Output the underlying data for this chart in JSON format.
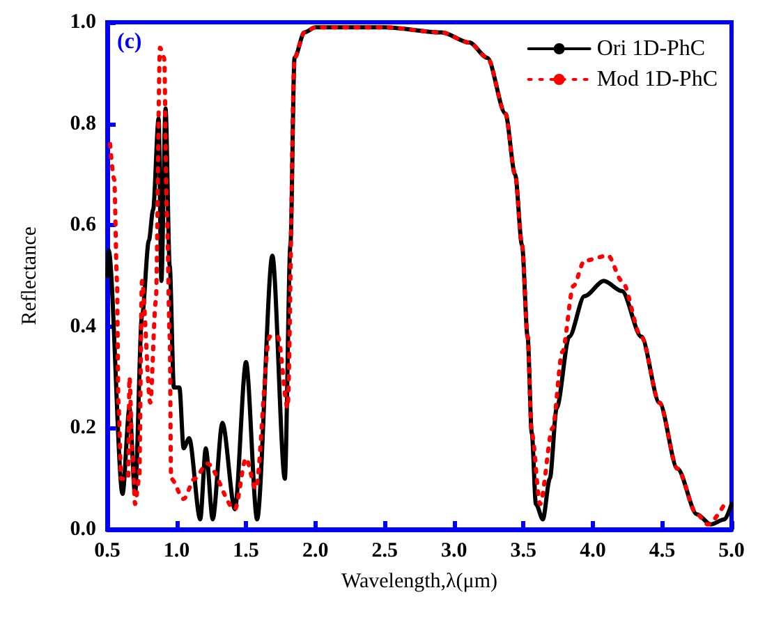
{
  "chart_data": {
    "type": "line",
    "xlabel": "Wavelength,λ(μm)",
    "ylabel": "Reflectance",
    "annotations": [
      "(c)"
    ],
    "xlim": [
      0.5,
      5.0
    ],
    "xticks": [
      {
        "value": 0.5,
        "label": "0.5"
      },
      {
        "value": 1.0,
        "label": "1.0"
      },
      {
        "value": 1.5,
        "label": "1.5"
      },
      {
        "value": 2.0,
        "label": "2.0"
      },
      {
        "value": 2.5,
        "label": "2.5"
      },
      {
        "value": 3.0,
        "label": "3.0"
      },
      {
        "value": 3.5,
        "label": "3.5"
      },
      {
        "value": 4.0,
        "label": "4.0"
      },
      {
        "value": 4.5,
        "label": "4.5"
      },
      {
        "value": 5.0,
        "label": "5.0"
      }
    ],
    "ylim": [
      0.0,
      1.0
    ],
    "yticks": [
      {
        "value": 0.0,
        "label": "0.0"
      },
      {
        "value": 0.2,
        "label": "0.2"
      },
      {
        "value": 0.4,
        "label": "0.4"
      },
      {
        "value": 0.6,
        "label": "0.6"
      },
      {
        "value": 0.8,
        "label": "0.8"
      },
      {
        "value": 1.0,
        "label": "1.0"
      }
    ],
    "grid": false,
    "legend": "top right",
    "marker": "none",
    "series": [
      {
        "name": "Ori 1D-PhC",
        "color": "#000000",
        "line_style": "solid",
        "x": [
          0.5,
          0.51,
          0.61,
          0.66,
          0.7,
          0.75,
          0.8,
          0.83,
          0.87,
          0.89,
          0.92,
          0.95,
          0.98,
          1.02,
          1.05,
          1.09,
          1.17,
          1.21,
          1.26,
          1.33,
          1.42,
          1.5,
          1.58,
          1.69,
          1.78,
          1.82,
          1.85,
          1.92,
          2.0,
          2.5,
          2.91,
          3.11,
          3.24,
          3.37,
          3.44,
          3.49,
          3.53,
          3.56,
          3.59,
          3.64,
          3.69,
          3.74,
          3.83,
          3.94,
          4.08,
          4.21,
          4.35,
          4.48,
          4.61,
          4.75,
          4.85,
          4.95,
          5.0
        ],
        "values": [
          0.5,
          0.55,
          0.07,
          0.24,
          0.07,
          0.42,
          0.57,
          0.63,
          0.81,
          0.49,
          0.83,
          0.52,
          0.28,
          0.28,
          0.16,
          0.18,
          0.02,
          0.16,
          0.02,
          0.21,
          0.04,
          0.33,
          0.02,
          0.54,
          0.1,
          0.56,
          0.93,
          0.98,
          0.99,
          0.99,
          0.98,
          0.96,
          0.93,
          0.82,
          0.7,
          0.56,
          0.38,
          0.19,
          0.05,
          0.02,
          0.1,
          0.24,
          0.38,
          0.46,
          0.49,
          0.47,
          0.38,
          0.25,
          0.12,
          0.03,
          0.01,
          0.02,
          0.05
        ]
      },
      {
        "name": "Mod 1D-PhC",
        "color": "#ff0000",
        "line_style": "dotted",
        "x": [
          0.52,
          0.55,
          0.57,
          0.58,
          0.6,
          0.65,
          0.66,
          0.68,
          0.7,
          0.73,
          0.75,
          0.81,
          0.85,
          0.88,
          0.91,
          0.93,
          0.95,
          0.96,
          1.05,
          1.13,
          1.22,
          1.42,
          1.5,
          1.57,
          1.67,
          1.73,
          1.8,
          1.85,
          1.92,
          2.0,
          2.5,
          2.91,
          3.11,
          3.24,
          3.37,
          3.44,
          3.49,
          3.53,
          3.56,
          3.62,
          3.71,
          3.78,
          3.86,
          3.94,
          4.11,
          4.21,
          4.35,
          4.48,
          4.61,
          4.75,
          4.83,
          4.96
        ],
        "values": [
          0.76,
          0.69,
          0.49,
          0.25,
          0.1,
          0.1,
          0.3,
          0.16,
          0.05,
          0.1,
          0.49,
          0.25,
          0.45,
          0.95,
          0.93,
          0.62,
          0.38,
          0.1,
          0.06,
          0.1,
          0.13,
          0.04,
          0.14,
          0.08,
          0.38,
          0.38,
          0.24,
          0.93,
          0.98,
          0.99,
          0.99,
          0.98,
          0.96,
          0.93,
          0.82,
          0.7,
          0.56,
          0.38,
          0.19,
          0.05,
          0.2,
          0.35,
          0.48,
          0.53,
          0.54,
          0.49,
          0.38,
          0.25,
          0.12,
          0.03,
          0.01,
          0.055
        ]
      }
    ]
  }
}
